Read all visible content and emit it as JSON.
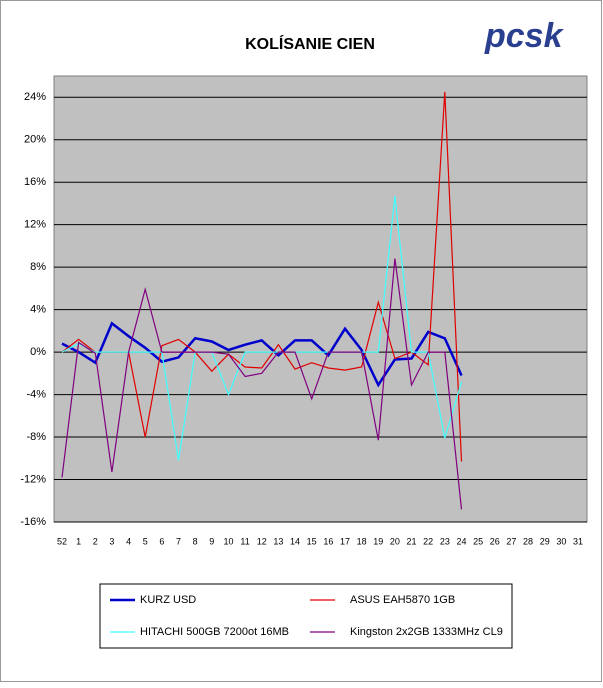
{
  "chart_data": {
    "type": "line",
    "title": "KOLÍSANIE CIEN",
    "logo": "pcsk",
    "categories": [
      "52",
      "1",
      "2",
      "3",
      "4",
      "5",
      "6",
      "7",
      "8",
      "9",
      "10",
      "11",
      "12",
      "13",
      "14",
      "15",
      "16",
      "17",
      "18",
      "19",
      "20",
      "21",
      "22",
      "23",
      "24",
      "25",
      "26",
      "27",
      "28",
      "29",
      "30",
      "31"
    ],
    "ylim": [
      -16,
      26
    ],
    "yticks": [
      {
        "value": -16,
        "label": "-16%"
      },
      {
        "value": -12,
        "label": "-12%"
      },
      {
        "value": -8,
        "label": "-8%"
      },
      {
        "value": -4,
        "label": "-4%"
      },
      {
        "value": 0,
        "label": "0%"
      },
      {
        "value": 4,
        "label": "4%"
      },
      {
        "value": 8,
        "label": "8%"
      },
      {
        "value": 12,
        "label": "12%"
      },
      {
        "value": 16,
        "label": "16%"
      },
      {
        "value": 20,
        "label": "20%"
      },
      {
        "value": 24,
        "label": "24%"
      }
    ],
    "grid": true,
    "series": [
      {
        "name": "KURZ USD",
        "color": "#0000cc",
        "values": [
          0.8,
          0,
          -1.0,
          2.7,
          1.5,
          0.4,
          -0.9,
          -0.5,
          1.3,
          1.0,
          0.2,
          0.7,
          1.1,
          -0.3,
          1.1,
          1.1,
          -0.3,
          2.2,
          0.2,
          -3.1,
          -0.7,
          -0.6,
          1.9,
          1.3,
          -2.2,
          null,
          null,
          null,
          null,
          null,
          null,
          null
        ]
      },
      {
        "name": "ASUS EAH5870 1GB",
        "color": "#e00000",
        "values": [
          0,
          1.2,
          0,
          0,
          0,
          -8.0,
          0.6,
          1.2,
          0,
          -1.8,
          -0.2,
          -1.4,
          -1.5,
          0.7,
          -1.6,
          -1.0,
          -1.5,
          -1.7,
          -1.4,
          4.7,
          -0.6,
          0,
          -1.2,
          24.5,
          -10.3,
          null,
          null,
          null,
          null,
          null,
          null,
          null
        ]
      },
      {
        "name": "HITACHI 500GB 7200ot 16MB",
        "color": "#40ffff",
        "values": [
          0,
          0.8,
          0,
          0,
          0,
          0,
          0,
          -10.2,
          0,
          0,
          -4.0,
          0,
          0,
          0,
          0,
          0,
          0,
          0,
          0,
          0,
          14.7,
          0,
          0,
          -8.1,
          -2.8,
          null,
          null,
          null,
          null,
          null,
          null,
          null
        ]
      },
      {
        "name": "Kingston 2x2GB 1333MHz CL9",
        "color": "#800080",
        "values": [
          -11.8,
          0.9,
          -0.1,
          -11.3,
          0,
          5.9,
          0,
          0,
          0,
          0,
          -0.2,
          -2.3,
          -2.0,
          0,
          0,
          -4.4,
          0,
          0,
          0,
          -8.3,
          8.8,
          -3.1,
          0,
          0,
          -14.8,
          null,
          null,
          null,
          null,
          null,
          null,
          null
        ]
      }
    ]
  }
}
